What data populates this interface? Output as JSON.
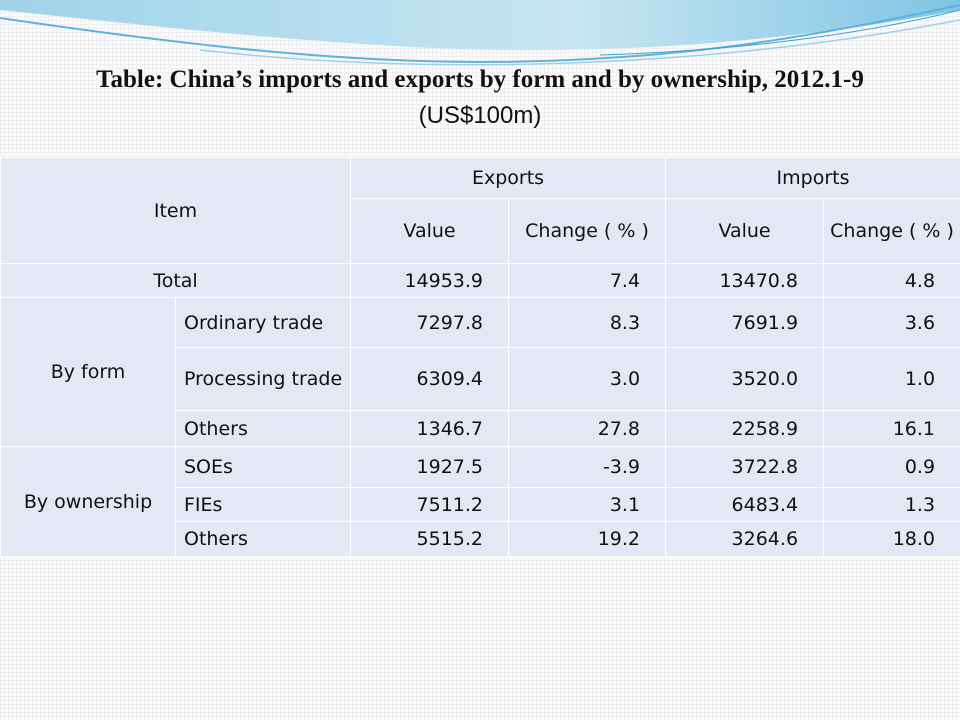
{
  "header": {
    "title": "Table: China’s imports and exports by form and by ownership, 2012.1-9",
    "subtitle": "(US$100m)"
  },
  "table": {
    "item": "Item",
    "exports": "Exports",
    "imports": "Imports",
    "sub_headers": [
      "Value",
      "Change ( % )",
      "Value",
      "Change ( % )"
    ],
    "total": {
      "label": "Total",
      "values": [
        "14953.9",
        "7.4",
        "13470.8",
        "4.8"
      ]
    },
    "groups": [
      {
        "label": "By form",
        "rows": [
          {
            "label": "Ordinary trade",
            "values": [
              "7297.8",
              "8.3",
              "7691.9",
              "3.6"
            ]
          },
          {
            "label": "Processing trade",
            "values": [
              "6309.4",
              "3.0",
              "3520.0",
              "1.0"
            ]
          },
          {
            "label": "Others",
            "values": [
              "1346.7",
              "27.8",
              "2258.9",
              "16.1"
            ]
          }
        ]
      },
      {
        "label": "By ownership",
        "rows": [
          {
            "label": "SOEs",
            "values": [
              "1927.5",
              "-3.9",
              "3722.8",
              "0.9"
            ]
          },
          {
            "label": "FIEs",
            "values": [
              "7511.2",
              "3.1",
              "6483.4",
              "1.3"
            ]
          },
          {
            "label": "Others",
            "values": [
              "5515.2",
              "19.2",
              "3264.6",
              "18.0"
            ]
          }
        ]
      }
    ]
  }
}
